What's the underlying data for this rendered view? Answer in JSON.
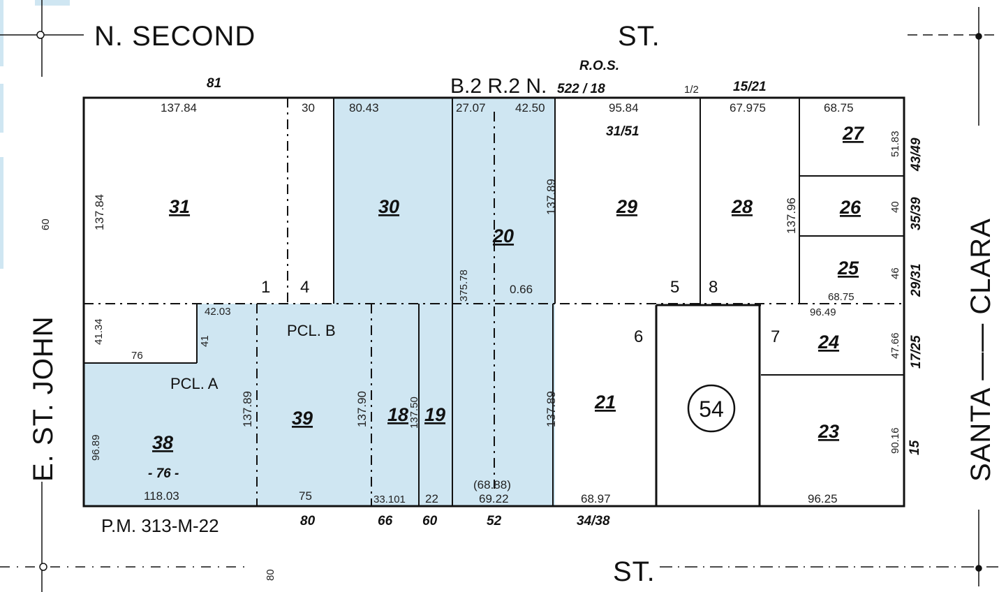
{
  "streets": {
    "north_left": "N.  SECOND",
    "north_right": "ST.",
    "south": "ST.",
    "west": "E.    ST. JOHN",
    "east": "SANTA —— CLARA"
  },
  "recordings": {
    "ros_label": "R.O.S.",
    "book_ref_prefix": "B.2 R.2 N.",
    "book_ref_page": "522 / 18",
    "parcel_map": "P.M. 313-M-22"
  },
  "parcels": [
    {
      "apn": "31"
    },
    {
      "apn": "30"
    },
    {
      "apn": "20"
    },
    {
      "apn": "29"
    },
    {
      "apn": "28"
    },
    {
      "apn": "27"
    },
    {
      "apn": "26"
    },
    {
      "apn": "25"
    },
    {
      "apn": "24"
    },
    {
      "apn": "23"
    },
    {
      "apn": "21"
    },
    {
      "apn": "18"
    },
    {
      "apn": "19"
    },
    {
      "apn": "39"
    },
    {
      "apn": "38"
    }
  ],
  "parcel_labels": {
    "pcl_a": "PCL. A",
    "pcl_b": "PCL. B"
  },
  "block_number": "54",
  "lot_numbers": [
    "1",
    "4",
    "5",
    "8",
    "6",
    "7",
    "30"
  ],
  "top_frontage": {
    "f81": "81",
    "f1_2": "1/2",
    "f15_21": "15/21",
    "f31_51": "31/51"
  },
  "bottom_frontage": {
    "f80": "80",
    "f66": "66",
    "f60": "60",
    "f52": "52",
    "f34_38": "34/38"
  },
  "side_frontage": {
    "f43_49": "43/49",
    "f35_39": "35/39",
    "f29_31": "29/31",
    "f17_25": "17/25",
    "f15": "15",
    "w60": "60",
    "s80": "80",
    "m76": "- 76 -"
  },
  "dimensions": {
    "d137_84_top": "137.84",
    "d80_43": "80.43",
    "d27_07": "27.07",
    "d42_50": "42.50",
    "d95_84": "95.84",
    "d67_975": "67.975",
    "d68_75_top": "68.75",
    "d51_83": "51.83",
    "d40": "40",
    "d46": "46",
    "d68_75": "68.75",
    "d96_49": "96.49",
    "d47_66": "47.66",
    "d90_16": "90.16",
    "d96_25": "96.25",
    "d137_96": "137.96",
    "d137_89_a": "137.89",
    "d375_78": "375.78",
    "d0_66": "0.66",
    "d137_84_left": "137.84",
    "d41_34": "41.34",
    "d76": "76",
    "d42_03": "42.03",
    "d41": "41",
    "d137_89_b": "137.89",
    "d137_90": "137.90",
    "d137_50": "137.50",
    "d137_89_c": "137.89",
    "d96_89": "96.89",
    "d118_03": "118.03",
    "d75": "75",
    "d33_101": "33.101",
    "d22": "22",
    "d68_88": "(68.88)",
    "d69_22": "69.22",
    "d68_97": "68.97"
  },
  "colors": {
    "highlight": "#cfe6f2",
    "line": "#111111",
    "background": "#ffffff"
  }
}
